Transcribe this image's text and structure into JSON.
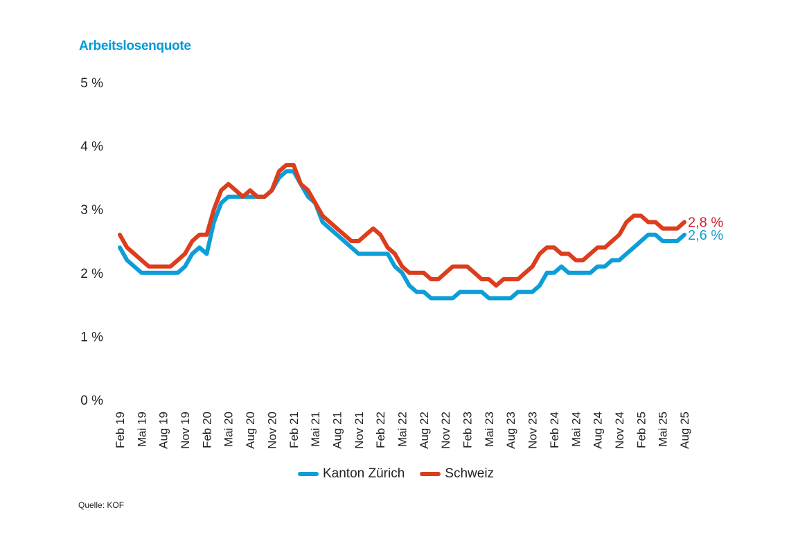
{
  "chart_data": {
    "type": "line",
    "title": "Arbeitslosenquote",
    "source": "Quelle: KOF",
    "ylim": [
      0,
      5
    ],
    "y_ticks": [
      "0 %",
      "1 %",
      "2 %",
      "3 %",
      "4 %",
      "5 %"
    ],
    "x_tick_labels": [
      "Feb 19",
      "Mai 19",
      "Aug 19",
      "Nov 19",
      "Feb 20",
      "Mai 20",
      "Aug 20",
      "Nov 20",
      "Feb 21",
      "Mai 21",
      "Aug 21",
      "Nov 21",
      "Feb 22",
      "Mai 22",
      "Aug 22",
      "Nov 22",
      "Feb 23",
      "Mai 23",
      "Aug 23",
      "Nov 23",
      "Feb 24",
      "Mai 24",
      "Aug 24",
      "Nov 24",
      "Feb 25",
      "Mai 25",
      "Aug 25"
    ],
    "x_range": [
      "Feb 19",
      "Aug 25"
    ],
    "grid": false,
    "legend_position": "bottom",
    "series": [
      {
        "name": "Kanton Zürich",
        "color": "#0c9ed8",
        "end_label": "2,6 %",
        "values": [
          2.4,
          2.2,
          2.1,
          2.0,
          2.0,
          2.0,
          2.0,
          2.0,
          2.0,
          2.1,
          2.3,
          2.4,
          2.3,
          2.8,
          3.1,
          3.2,
          3.2,
          3.2,
          3.2,
          3.2,
          3.2,
          3.3,
          3.5,
          3.6,
          3.6,
          3.4,
          3.2,
          3.1,
          2.8,
          2.7,
          2.6,
          2.5,
          2.4,
          2.3,
          2.3,
          2.3,
          2.3,
          2.3,
          2.1,
          2.0,
          1.8,
          1.7,
          1.7,
          1.6,
          1.6,
          1.6,
          1.6,
          1.7,
          1.7,
          1.7,
          1.7,
          1.6,
          1.6,
          1.6,
          1.6,
          1.7,
          1.7,
          1.7,
          1.8,
          2.0,
          2.0,
          2.1,
          2.0,
          2.0,
          2.0,
          2.0,
          2.1,
          2.1,
          2.2,
          2.2,
          2.3,
          2.4,
          2.5,
          2.6,
          2.6,
          2.5,
          2.5,
          2.5,
          2.6
        ]
      },
      {
        "name": "Schweiz",
        "color": "#dc3d1c",
        "end_label": "2,8 %",
        "end_label_color": "#d0202a",
        "values": [
          2.6,
          2.4,
          2.3,
          2.2,
          2.1,
          2.1,
          2.1,
          2.1,
          2.2,
          2.3,
          2.5,
          2.6,
          2.6,
          3.0,
          3.3,
          3.4,
          3.3,
          3.2,
          3.3,
          3.2,
          3.2,
          3.3,
          3.6,
          3.7,
          3.7,
          3.4,
          3.3,
          3.1,
          2.9,
          2.8,
          2.7,
          2.6,
          2.5,
          2.5,
          2.6,
          2.7,
          2.6,
          2.4,
          2.3,
          2.1,
          2.0,
          2.0,
          2.0,
          1.9,
          1.9,
          2.0,
          2.1,
          2.1,
          2.1,
          2.0,
          1.9,
          1.9,
          1.8,
          1.9,
          1.9,
          1.9,
          2.0,
          2.1,
          2.3,
          2.4,
          2.4,
          2.3,
          2.3,
          2.2,
          2.2,
          2.3,
          2.4,
          2.4,
          2.5,
          2.6,
          2.8,
          2.9,
          2.9,
          2.8,
          2.8,
          2.7,
          2.7,
          2.7,
          2.8
        ]
      }
    ]
  }
}
